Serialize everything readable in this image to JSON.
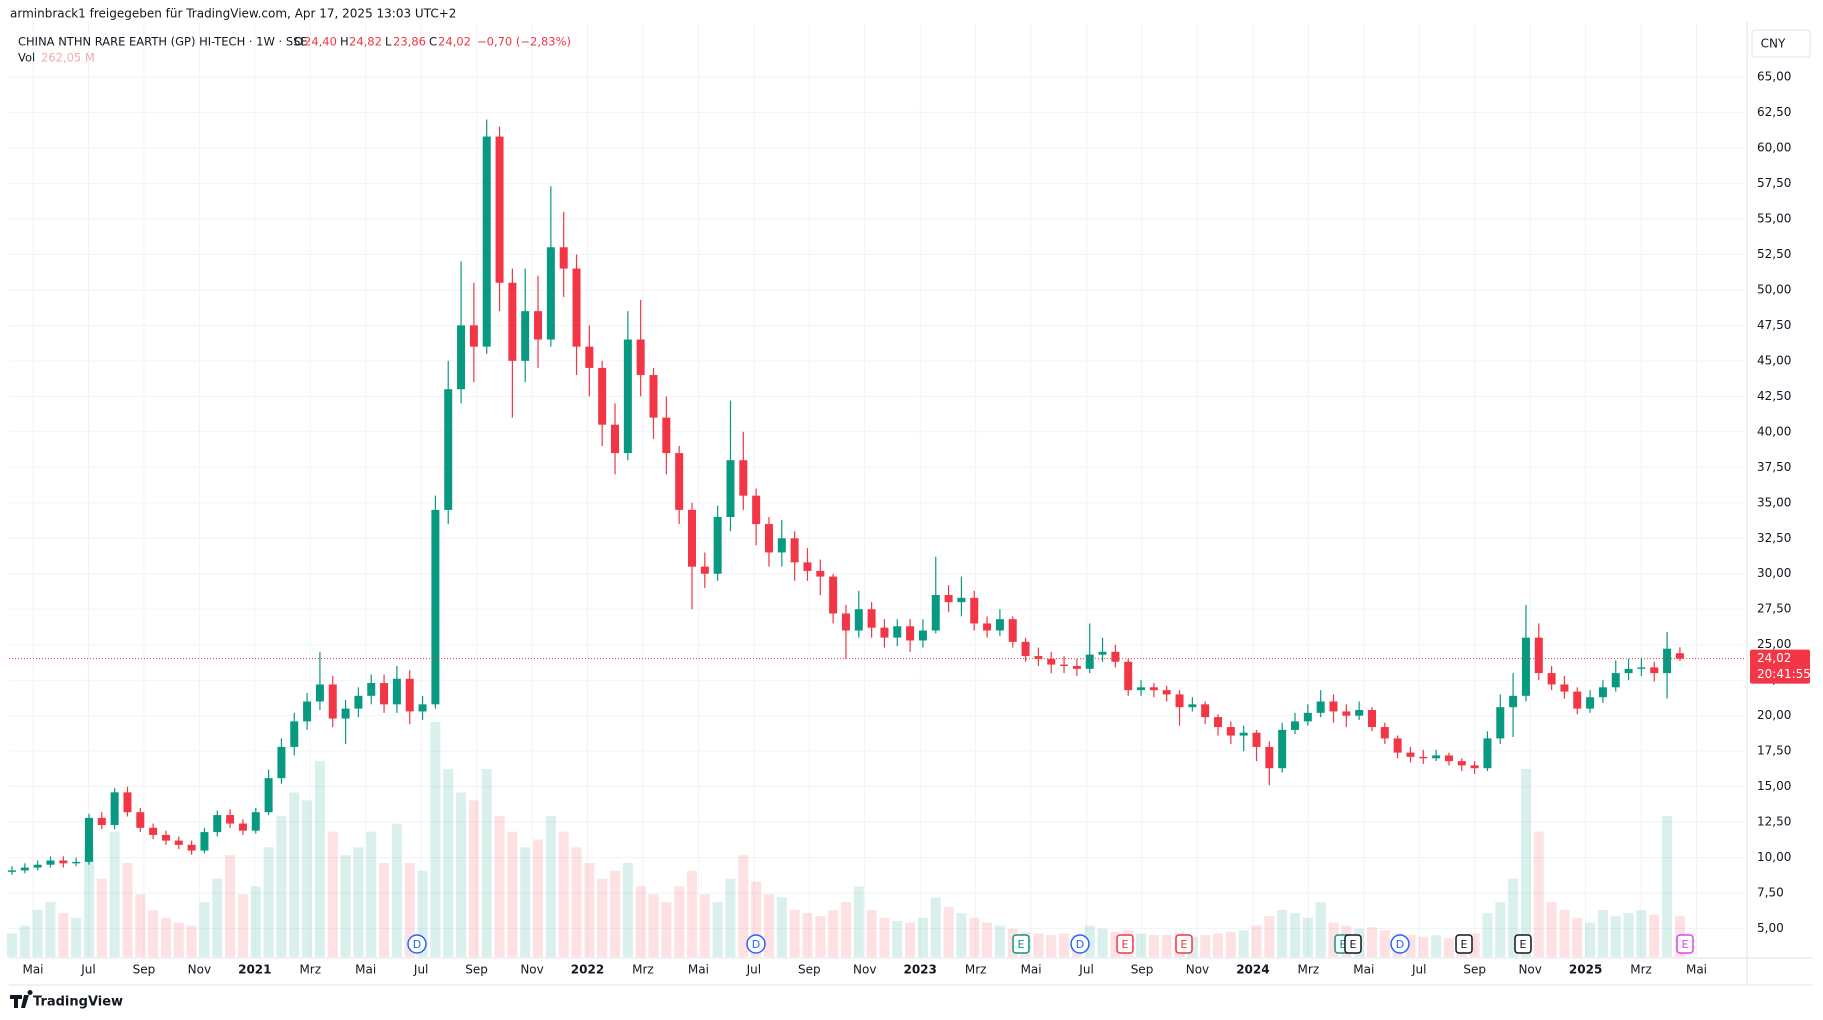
{
  "header": {
    "shared_by": "arminbrack1 freigegeben für TradingView.com, Apr 17, 2025 13:03 UTC+2",
    "symbol": "CHINA NTHN RARE EARTH (GP) HI-TECH · 1W · SSE",
    "open_label": "O",
    "open": "24,40",
    "high_label": "H",
    "high": "24,82",
    "low_label": "L",
    "low": "23,86",
    "close_label": "C",
    "close": "24,02",
    "change": "−0,70 (−2,83%)",
    "volume_label": "Vol",
    "volume": "262,05 M",
    "currency": "CNY",
    "price_tag": "24,02",
    "countdown": "20:41:55",
    "brand": "TradingView"
  },
  "chart_data": {
    "type": "candlestick",
    "up_color": "#089981",
    "down_color": "#f23645",
    "ylim": [
      3.0,
      68.8
    ],
    "yticks": [
      {
        "value": 5,
        "label": "5,00"
      },
      {
        "value": 7.5,
        "label": "7,50"
      },
      {
        "value": 10,
        "label": "10,00"
      },
      {
        "value": 12.5,
        "label": "12,50"
      },
      {
        "value": 15,
        "label": "15,00"
      },
      {
        "value": 17.5,
        "label": "17,50"
      },
      {
        "value": 20,
        "label": "20,00"
      },
      {
        "value": 22.5,
        "label": "22,50"
      },
      {
        "value": 25,
        "label": "25,00"
      },
      {
        "value": 27.5,
        "label": "27,50"
      },
      {
        "value": 30,
        "label": "30,00"
      },
      {
        "value": 32.5,
        "label": "32,50"
      },
      {
        "value": 35,
        "label": "35,00"
      },
      {
        "value": 37.5,
        "label": "37,50"
      },
      {
        "value": 40,
        "label": "40,00"
      },
      {
        "value": 42.5,
        "label": "42,50"
      },
      {
        "value": 45,
        "label": "45,00"
      },
      {
        "value": 47.5,
        "label": "47,50"
      },
      {
        "value": 50,
        "label": "50,00"
      },
      {
        "value": 52.5,
        "label": "52,50"
      },
      {
        "value": 55,
        "label": "55,00"
      },
      {
        "value": 57.5,
        "label": "57,50"
      },
      {
        "value": 60,
        "label": "60,00"
      },
      {
        "value": 62.5,
        "label": "62,50"
      },
      {
        "value": 65,
        "label": "65,00"
      }
    ],
    "x_labels": [
      "Mai",
      "Jul",
      "Sep",
      "Nov",
      "2021",
      "Mrz",
      "Mai",
      "Jul",
      "Sep",
      "Nov",
      "2022",
      "Mrz",
      "Mai",
      "Jul",
      "Sep",
      "Nov",
      "2023",
      "Mrz",
      "Mai",
      "Jul",
      "Sep",
      "Nov",
      "2024",
      "Mrz",
      "Mai",
      "Jul",
      "Sep",
      "Nov",
      "2025",
      "Mrz",
      "Mai"
    ],
    "grid": true,
    "open": [
      9.0,
      9.1,
      9.3,
      9.5,
      9.8,
      9.6,
      9.7,
      12.8,
      12.3,
      14.6,
      13.2,
      12.1,
      11.6,
      11.2,
      10.9,
      10.5,
      11.8,
      13.0,
      12.4,
      11.9,
      13.2,
      15.6,
      17.8,
      19.6,
      21.0,
      22.2,
      19.8,
      20.5,
      21.4,
      22.3,
      20.8,
      22.6,
      20.3,
      20.8,
      34.5,
      43.0,
      47.5,
      46.0,
      60.8,
      50.5,
      45.0,
      48.5,
      46.5,
      53.0,
      51.5,
      46.0,
      44.5,
      40.5,
      38.5,
      46.5,
      44.0,
      41.0,
      38.5,
      34.5,
      30.5,
      30.0,
      34.0,
      38.0,
      35.5,
      33.5,
      31.5,
      32.5,
      30.8,
      30.2,
      29.8,
      27.2,
      26.0,
      27.5,
      26.2,
      25.5,
      26.3,
      25.3,
      26.0,
      28.5,
      28.0,
      28.3,
      26.5,
      26.0,
      26.8,
      25.2,
      24.2,
      24.0,
      23.6,
      23.5,
      23.3,
      24.3,
      24.5,
      23.8,
      21.8,
      22.0,
      21.8,
      21.5,
      20.6,
      20.8,
      19.9,
      19.2,
      18.6,
      18.8,
      17.8,
      16.3,
      19.0,
      19.6,
      20.2,
      21.0,
      20.3,
      20.0,
      20.4,
      19.2,
      18.4,
      17.4,
      17.1,
      17.0,
      17.2,
      16.8,
      16.5,
      16.3,
      18.4,
      20.6,
      21.4,
      25.5,
      23.0,
      22.2,
      21.7,
      20.5,
      21.3,
      22.0,
      23.0,
      23.3,
      23.4,
      23.0,
      24.4
    ],
    "high": [
      9.4,
      9.6,
      9.8,
      10.1,
      10.1,
      10.0,
      13.1,
      13.2,
      14.9,
      15.0,
      13.5,
      12.4,
      11.9,
      11.5,
      11.2,
      12.1,
      13.3,
      13.4,
      12.7,
      13.5,
      16.2,
      18.4,
      20.2,
      21.6,
      24.5,
      22.8,
      21.1,
      22.0,
      22.9,
      22.9,
      23.5,
      23.2,
      21.4,
      35.5,
      45.0,
      52.0,
      50.5,
      62.0,
      61.5,
      51.5,
      51.5,
      51.0,
      57.3,
      55.5,
      52.5,
      47.5,
      45.0,
      42.0,
      48.5,
      49.3,
      44.5,
      42.5,
      39.0,
      35.0,
      31.5,
      34.8,
      42.2,
      40.0,
      36.0,
      34.0,
      33.8,
      33.0,
      31.8,
      31.0,
      30.0,
      27.8,
      28.8,
      28.0,
      26.8,
      26.8,
      26.8,
      26.8,
      31.2,
      29.2,
      29.8,
      28.8,
      27.0,
      27.5,
      27.0,
      25.5,
      24.8,
      24.5,
      24.2,
      24.0,
      26.5,
      25.5,
      25.0,
      24.0,
      22.5,
      22.3,
      22.1,
      21.8,
      21.3,
      21.0,
      20.1,
      19.6,
      19.3,
      19.0,
      18.2,
      19.5,
      20.2,
      20.8,
      21.8,
      21.5,
      20.8,
      21.0,
      20.6,
      19.5,
      18.6,
      17.8,
      17.6,
      17.6,
      17.4,
      17.0,
      16.8,
      18.9,
      21.5,
      23.0,
      27.8,
      26.5,
      23.5,
      22.8,
      22.0,
      21.8,
      22.5,
      23.9,
      24.0,
      24.1,
      23.8,
      25.9,
      24.82
    ],
    "low": [
      8.8,
      8.9,
      9.1,
      9.3,
      9.3,
      9.4,
      9.5,
      12.0,
      12.0,
      12.9,
      11.8,
      11.3,
      10.9,
      10.6,
      10.2,
      10.3,
      11.5,
      12.1,
      11.6,
      11.7,
      13.0,
      15.2,
      17.2,
      19.0,
      20.4,
      19.2,
      18.0,
      19.9,
      20.8,
      20.2,
      20.2,
      19.4,
      19.7,
      20.5,
      33.5,
      42.0,
      43.5,
      45.5,
      48.5,
      41.0,
      43.5,
      44.5,
      46.0,
      49.5,
      44.0,
      42.5,
      39.0,
      37.0,
      38.0,
      42.5,
      39.5,
      37.0,
      33.5,
      27.5,
      29.0,
      29.5,
      33.0,
      34.5,
      32.0,
      30.5,
      30.5,
      29.5,
      29.5,
      28.5,
      26.5,
      24.0,
      25.5,
      25.5,
      24.8,
      24.9,
      24.5,
      24.8,
      25.8,
      27.3,
      27.0,
      26.0,
      25.5,
      25.6,
      24.8,
      23.8,
      23.5,
      23.0,
      23.0,
      22.8,
      23.0,
      23.8,
      23.4,
      21.4,
      21.4,
      21.3,
      21.0,
      19.3,
      20.3,
      19.4,
      18.6,
      18.0,
      17.5,
      16.8,
      15.1,
      16.0,
      18.7,
      19.3,
      19.9,
      19.5,
      19.2,
      19.7,
      18.9,
      18.0,
      17.0,
      16.7,
      16.6,
      16.8,
      16.5,
      16.1,
      15.9,
      16.1,
      18.0,
      18.5,
      21.0,
      22.5,
      21.8,
      21.2,
      20.1,
      20.2,
      20.9,
      21.7,
      22.5,
      22.8,
      22.4,
      21.2,
      23.86
    ],
    "close": [
      9.1,
      9.3,
      9.5,
      9.8,
      9.6,
      9.7,
      12.8,
      12.3,
      14.6,
      13.2,
      12.1,
      11.6,
      11.2,
      10.9,
      10.5,
      11.8,
      13.0,
      12.4,
      11.9,
      13.2,
      15.6,
      17.8,
      19.6,
      21.0,
      22.2,
      19.8,
      20.5,
      21.4,
      22.3,
      20.8,
      22.6,
      20.3,
      20.8,
      34.5,
      43.0,
      47.5,
      46.0,
      60.8,
      50.5,
      45.0,
      48.5,
      46.5,
      53.0,
      51.5,
      46.0,
      44.5,
      40.5,
      38.5,
      46.5,
      44.0,
      41.0,
      38.5,
      34.5,
      30.5,
      30.0,
      34.0,
      38.0,
      35.5,
      33.5,
      31.5,
      32.5,
      30.8,
      30.2,
      29.8,
      27.2,
      26.0,
      27.5,
      26.2,
      25.5,
      26.3,
      25.3,
      26.0,
      28.5,
      28.0,
      28.3,
      26.5,
      26.0,
      26.8,
      25.2,
      24.2,
      24.0,
      23.6,
      23.5,
      23.3,
      24.3,
      24.5,
      23.8,
      21.8,
      22.0,
      21.8,
      21.5,
      20.6,
      20.8,
      19.9,
      19.2,
      18.6,
      18.8,
      17.8,
      16.3,
      19.0,
      19.6,
      20.2,
      21.0,
      20.3,
      20.0,
      20.4,
      19.2,
      18.4,
      17.4,
      17.1,
      17.0,
      17.2,
      16.8,
      16.5,
      16.3,
      18.4,
      20.6,
      21.4,
      25.5,
      23.0,
      22.2,
      21.7,
      20.5,
      21.3,
      22.0,
      23.0,
      23.3,
      23.4,
      23.0,
      24.72,
      24.02
    ],
    "volume": [
      150,
      200,
      300,
      350,
      280,
      250,
      700,
      500,
      800,
      600,
      400,
      300,
      250,
      220,
      200,
      350,
      500,
      650,
      400,
      450,
      700,
      900,
      1050,
      1000,
      1250,
      800,
      650,
      700,
      800,
      600,
      850,
      600,
      550,
      1500,
      1200,
      1050,
      1000,
      1200,
      900,
      800,
      700,
      750,
      900,
      800,
      700,
      600,
      500,
      550,
      600,
      450,
      400,
      350,
      450,
      550,
      400,
      350,
      500,
      650,
      480,
      400,
      380,
      300,
      280,
      260,
      300,
      350,
      450,
      300,
      250,
      230,
      220,
      250,
      380,
      320,
      280,
      250,
      220,
      200,
      180,
      160,
      150,
      140,
      150,
      140,
      200,
      180,
      160,
      170,
      150,
      140,
      140,
      150,
      130,
      140,
      150,
      160,
      170,
      200,
      260,
      300,
      280,
      250,
      350,
      220,
      200,
      180,
      190,
      170,
      150,
      140,
      130,
      140,
      120,
      130,
      150,
      280,
      350,
      500,
      1200,
      800,
      350,
      300,
      250,
      220,
      300,
      260,
      280,
      300,
      270,
      900,
      262.05
    ],
    "events": [
      {
        "label": "D",
        "color": "#2962ff"
      },
      {
        "label": "D",
        "color": "#2962ff"
      },
      {
        "label": "E",
        "color": "#089981"
      },
      {
        "label": "D",
        "color": "#2962ff"
      },
      {
        "label": "E",
        "color": "#f23645"
      },
      {
        "label": "E",
        "color": "#f23645"
      },
      {
        "label": "E",
        "color": "#089981"
      },
      {
        "label": "E",
        "color": "#131722"
      },
      {
        "label": "D",
        "color": "#2962ff"
      },
      {
        "label": "E",
        "color": "#131722"
      },
      {
        "label": "E",
        "color": "#131722"
      },
      {
        "label": "E",
        "color": "#e040fb"
      }
    ]
  }
}
